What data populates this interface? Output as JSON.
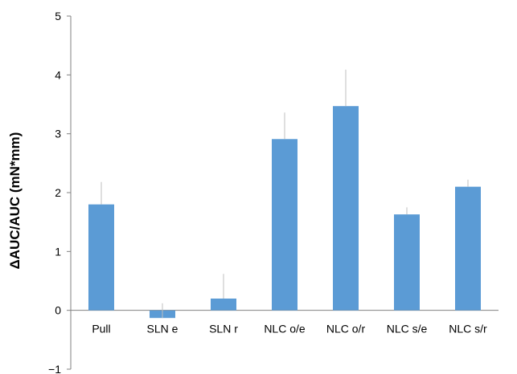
{
  "chart_data": {
    "type": "bar",
    "title": "",
    "xlabel": "",
    "ylabel": "ΔAUC/AUC (mN*mm)",
    "categories": [
      "Pull",
      "SLN e",
      "SLN r",
      "NLC o/e",
      "NLC o/r",
      "NLC s/e",
      "NLC s/r"
    ],
    "values": [
      1.8,
      -0.13,
      0.2,
      2.91,
      3.47,
      1.63,
      2.1
    ],
    "errors": [
      0.38,
      0.25,
      0.42,
      0.45,
      0.62,
      0.12,
      0.12
    ],
    "ylim": [
      -1,
      5
    ],
    "yticks": [
      "−1",
      "0",
      "1",
      "2",
      "3",
      "4",
      "5"
    ],
    "bar_color": "#5b9bd5",
    "error_bar_color": "#bfbfbf",
    "grid": false,
    "legend": "none"
  }
}
